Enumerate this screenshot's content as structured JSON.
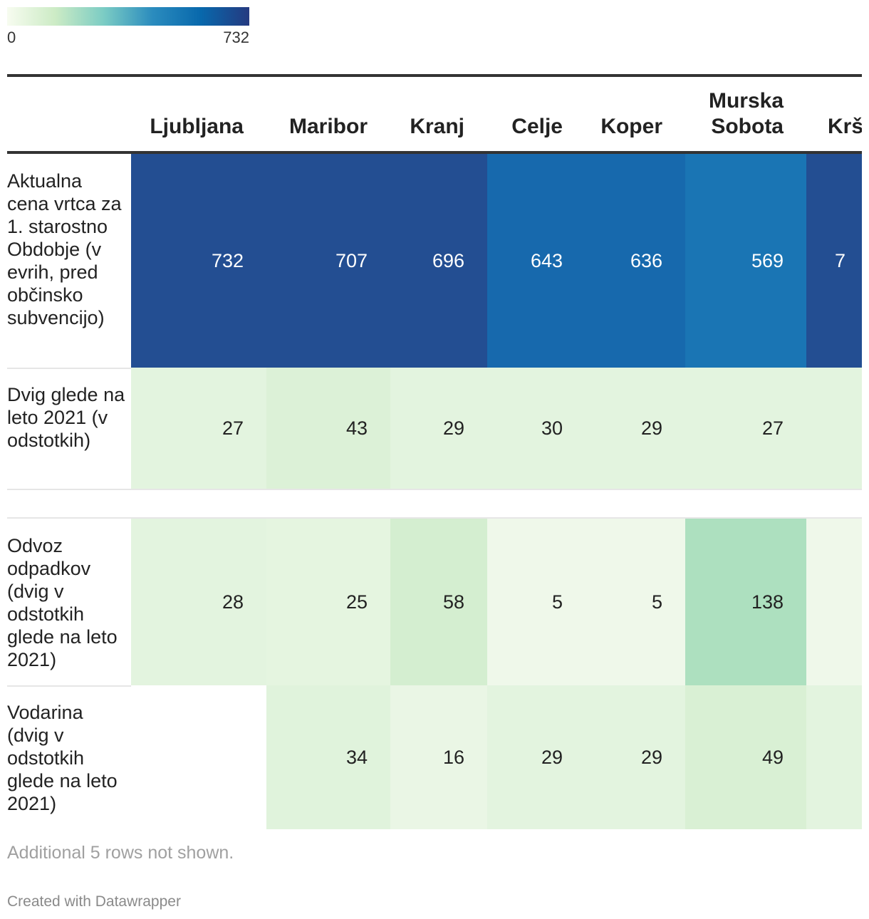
{
  "legend": {
    "min_label": "0",
    "max_label": "732",
    "min": 0,
    "max": 732,
    "gradient_colors": [
      "#f7fcf0",
      "#ccebc5",
      "#7bccc4",
      "#2b8cbe",
      "#0868ac",
      "#253a80"
    ]
  },
  "chart_data": {
    "type": "heatmap",
    "columns": [
      "Ljubljana",
      "Maribor",
      "Kranj",
      "Celje",
      "Koper",
      "Murska Sobota",
      "Krš"
    ],
    "rows": [
      {
        "label": "Aktualna cena vrtca za 1. starostno Obdobje (v evrih, pred občinsko subvencijo)",
        "values": [
          "732",
          "707",
          "696",
          "643",
          "636",
          "569",
          "7"
        ],
        "colors": [
          "#234e92",
          "#234e92",
          "#234e92",
          "#1769ad",
          "#1769ad",
          "#1a75b4",
          "#234e92"
        ]
      },
      {
        "label": "Dvig glede na leto 2021 (v odstotkih)",
        "values": [
          "27",
          "43",
          "29",
          "30",
          "29",
          "27",
          ""
        ],
        "colors": [
          "#e3f4df",
          "#dcf1d7",
          "#e3f4df",
          "#e3f4df",
          "#e3f4df",
          "#e3f4df",
          "#e3f4df"
        ]
      },
      {
        "label": "Odvoz odpadkov (dvig v odstotkih glede na leto 2021)",
        "values": [
          "28",
          "25",
          "58",
          "5",
          "5",
          "138",
          ""
        ],
        "colors": [
          "#e3f4df",
          "#e5f5e0",
          "#d4eed0",
          "#eff8ea",
          "#eff8ea",
          "#ade0bf",
          "#eff8ea"
        ]
      },
      {
        "label": "Vodarina (dvig v odstotkih glede na leto 2021)",
        "values": [
          "",
          "34",
          "16",
          "29",
          "29",
          "49",
          ""
        ],
        "colors": [
          "#ffffff",
          "#e0f3dc",
          "#eaf6e5",
          "#e3f4df",
          "#e3f4df",
          "#d9f0d4",
          "#e3f4df"
        ]
      }
    ]
  },
  "footnote": "Additional 5 rows not shown.",
  "credit": "Created with Datawrapper"
}
